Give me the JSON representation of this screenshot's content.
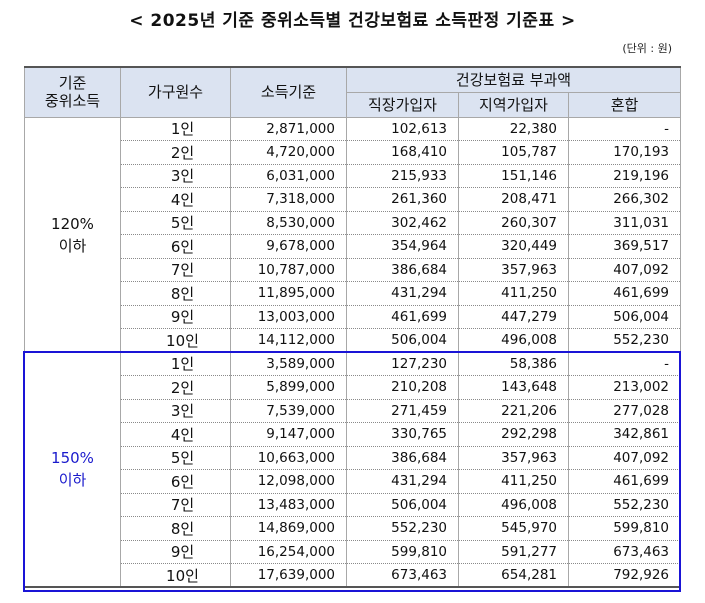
{
  "title": "< 2025년 기준 중위소득별 건강보험료 소득판정 기준표 >",
  "unit": "(단위 : 원)",
  "headers": {
    "median_income": [
      "기준",
      "중위소득"
    ],
    "household": "가구원수",
    "income_standard": "소득기준",
    "premium": "건강보험료 부과액",
    "employee": "직장가입자",
    "regional": "지역가입자",
    "mixed": "혼합"
  },
  "groups": [
    {
      "label": [
        "120%",
        "이하"
      ],
      "highlighted": false,
      "rows": [
        {
          "hh": "1인",
          "income": "2,871,000",
          "employee": "102,613",
          "regional": "22,380",
          "mixed": "-"
        },
        {
          "hh": "2인",
          "income": "4,720,000",
          "employee": "168,410",
          "regional": "105,787",
          "mixed": "170,193"
        },
        {
          "hh": "3인",
          "income": "6,031,000",
          "employee": "215,933",
          "regional": "151,146",
          "mixed": "219,196"
        },
        {
          "hh": "4인",
          "income": "7,318,000",
          "employee": "261,360",
          "regional": "208,471",
          "mixed": "266,302"
        },
        {
          "hh": "5인",
          "income": "8,530,000",
          "employee": "302,462",
          "regional": "260,307",
          "mixed": "311,031"
        },
        {
          "hh": "6인",
          "income": "9,678,000",
          "employee": "354,964",
          "regional": "320,449",
          "mixed": "369,517"
        },
        {
          "hh": "7인",
          "income": "10,787,000",
          "employee": "386,684",
          "regional": "357,963",
          "mixed": "407,092"
        },
        {
          "hh": "8인",
          "income": "11,895,000",
          "employee": "431,294",
          "regional": "411,250",
          "mixed": "461,699"
        },
        {
          "hh": "9인",
          "income": "13,003,000",
          "employee": "461,699",
          "regional": "447,279",
          "mixed": "506,004"
        },
        {
          "hh": "10인",
          "income": "14,112,000",
          "employee": "506,004",
          "regional": "496,008",
          "mixed": "552,230"
        }
      ]
    },
    {
      "label": [
        "150%",
        "이하"
      ],
      "highlighted": true,
      "rows": [
        {
          "hh": "1인",
          "income": "3,589,000",
          "employee": "127,230",
          "regional": "58,386",
          "mixed": "-"
        },
        {
          "hh": "2인",
          "income": "5,899,000",
          "employee": "210,208",
          "regional": "143,648",
          "mixed": "213,002"
        },
        {
          "hh": "3인",
          "income": "7,539,000",
          "employee": "271,459",
          "regional": "221,206",
          "mixed": "277,028"
        },
        {
          "hh": "4인",
          "income": "9,147,000",
          "employee": "330,765",
          "regional": "292,298",
          "mixed": "342,861"
        },
        {
          "hh": "5인",
          "income": "10,663,000",
          "employee": "386,684",
          "regional": "357,963",
          "mixed": "407,092"
        },
        {
          "hh": "6인",
          "income": "12,098,000",
          "employee": "431,294",
          "regional": "411,250",
          "mixed": "461,699"
        },
        {
          "hh": "7인",
          "income": "13,483,000",
          "employee": "506,004",
          "regional": "496,008",
          "mixed": "552,230"
        },
        {
          "hh": "8인",
          "income": "14,869,000",
          "employee": "552,230",
          "regional": "545,970",
          "mixed": "599,810"
        },
        {
          "hh": "9인",
          "income": "16,254,000",
          "employee": "599,810",
          "regional": "591,277",
          "mixed": "673,463"
        },
        {
          "hh": "10인",
          "income": "17,639,000",
          "employee": "673,463",
          "regional": "654,281",
          "mixed": "792,926"
        }
      ]
    }
  ],
  "colors": {
    "header_bg": "#dbe3f1",
    "highlight": "#1a14d6"
  }
}
